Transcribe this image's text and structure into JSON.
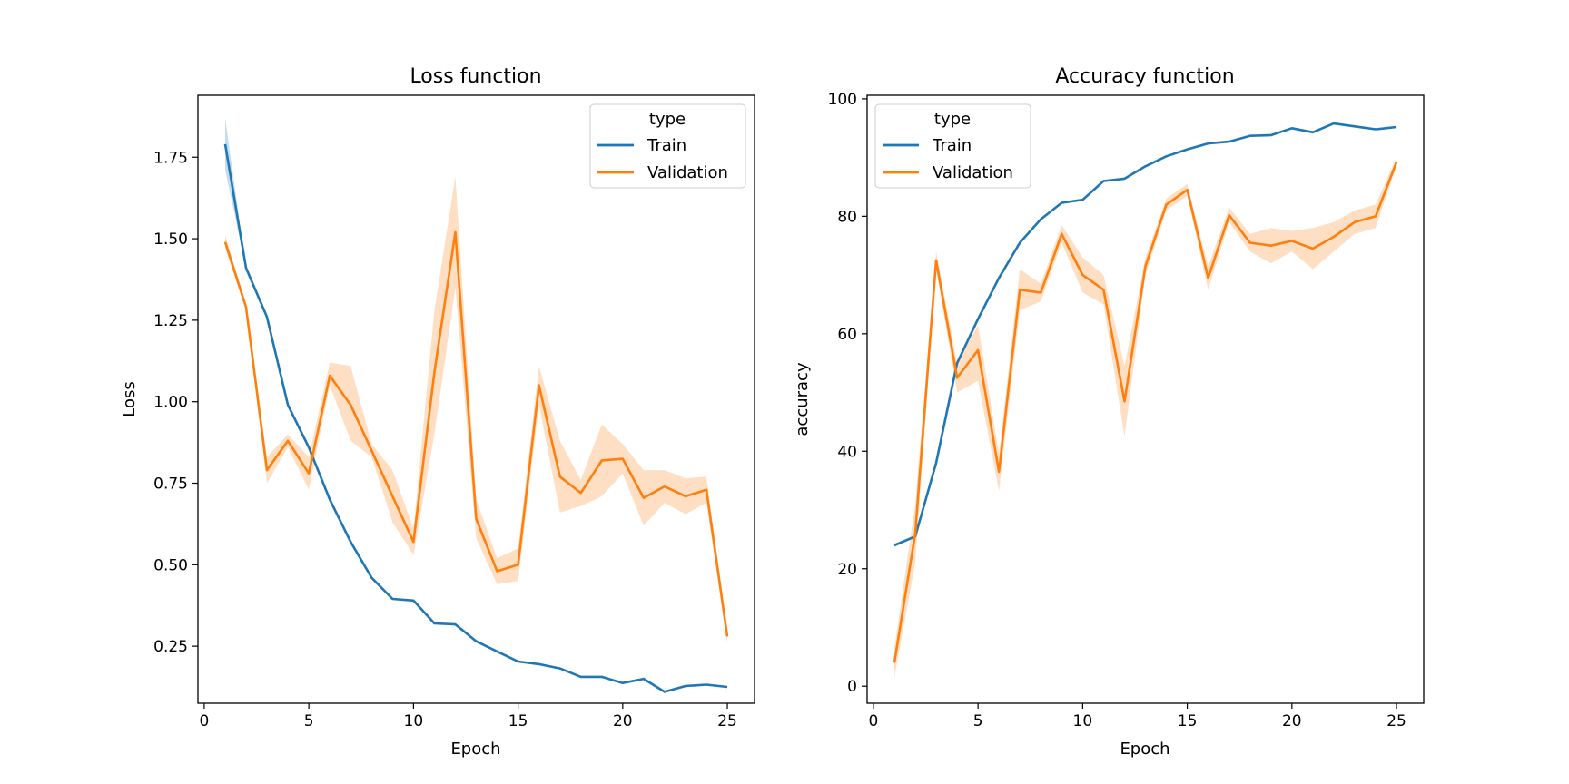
{
  "chart_data": [
    {
      "type": "line",
      "title": "Loss function",
      "xlabel": "Epoch",
      "ylabel": "Loss",
      "xlim": [
        -0.3,
        26.3
      ],
      "ylim": [
        0.075,
        1.94
      ],
      "xticks": [
        "0",
        "5",
        "10",
        "15",
        "20",
        "25"
      ],
      "yticks": [
        "0.25",
        "0.50",
        "0.75",
        "1.00",
        "1.25",
        "1.50",
        "1.75"
      ],
      "grid": false,
      "legend": {
        "title": "type",
        "position": "upper right",
        "entries": [
          "Train",
          "Validation"
        ]
      },
      "x": [
        1,
        2,
        3,
        4,
        5,
        6,
        7,
        8,
        9,
        10,
        11,
        12,
        13,
        14,
        15,
        16,
        17,
        18,
        19,
        20,
        21,
        22,
        23,
        24,
        25
      ],
      "series": [
        {
          "name": "Train",
          "color": "#1f77b4",
          "values": [
            1.79,
            1.41,
            1.26,
            0.99,
            0.86,
            0.7,
            0.57,
            0.46,
            0.395,
            0.39,
            0.32,
            0.317,
            0.265,
            0.234,
            0.203,
            0.195,
            0.182,
            0.156,
            0.156,
            0.137,
            0.15,
            0.11,
            0.128,
            0.132,
            0.125
          ],
          "lower": [
            1.71,
            1.41,
            1.26,
            0.99,
            0.86,
            0.7,
            0.57,
            0.46,
            0.395,
            0.39,
            0.32,
            0.317,
            0.265,
            0.234,
            0.203,
            0.195,
            0.182,
            0.156,
            0.156,
            0.137,
            0.15,
            0.11,
            0.128,
            0.132,
            0.125
          ],
          "upper": [
            1.87,
            1.41,
            1.26,
            0.99,
            0.86,
            0.7,
            0.57,
            0.46,
            0.395,
            0.39,
            0.32,
            0.317,
            0.265,
            0.234,
            0.203,
            0.195,
            0.182,
            0.156,
            0.156,
            0.137,
            0.15,
            0.11,
            0.128,
            0.132,
            0.125
          ]
        },
        {
          "name": "Validation",
          "color": "#ff7f0e",
          "values": [
            1.49,
            1.29,
            0.79,
            0.88,
            0.78,
            1.08,
            0.99,
            0.85,
            0.71,
            0.57,
            1.09,
            1.52,
            0.64,
            0.48,
            0.5,
            1.05,
            0.77,
            0.72,
            0.82,
            0.825,
            0.705,
            0.74,
            0.71,
            0.73,
            0.28
          ],
          "lower": [
            1.47,
            1.28,
            0.75,
            0.86,
            0.73,
            1.05,
            0.88,
            0.83,
            0.63,
            0.53,
            0.9,
            1.35,
            0.58,
            0.44,
            0.45,
            0.99,
            0.66,
            0.68,
            0.71,
            0.78,
            0.62,
            0.69,
            0.655,
            0.69,
            0.26
          ],
          "upper": [
            1.51,
            1.3,
            0.83,
            0.9,
            0.83,
            1.12,
            1.11,
            0.87,
            0.79,
            0.61,
            1.28,
            1.69,
            0.7,
            0.52,
            0.55,
            1.11,
            0.88,
            0.76,
            0.93,
            0.87,
            0.79,
            0.79,
            0.765,
            0.77,
            0.3
          ]
        }
      ]
    },
    {
      "type": "line",
      "title": "Accuracy function",
      "xlabel": "Epoch",
      "ylabel": "accuracy",
      "xlim": [
        -0.3,
        26.3
      ],
      "ylim": [
        -2.9,
        100.6
      ],
      "xticks": [
        "0",
        "5",
        "10",
        "15",
        "20",
        "25"
      ],
      "yticks": [
        "0",
        "20",
        "40",
        "60",
        "80",
        "100"
      ],
      "grid": false,
      "legend": {
        "title": "type",
        "position": "upper left",
        "entries": [
          "Train",
          "Validation"
        ]
      },
      "x": [
        1,
        2,
        3,
        4,
        5,
        6,
        7,
        8,
        9,
        10,
        11,
        12,
        13,
        14,
        15,
        16,
        17,
        18,
        19,
        20,
        21,
        22,
        23,
        24,
        25
      ],
      "series": [
        {
          "name": "Train",
          "color": "#1f77b4",
          "values": [
            24,
            25.5,
            38,
            55,
            62.5,
            69.5,
            75.5,
            79.5,
            82.3,
            82.8,
            86,
            86.4,
            88.5,
            90.2,
            91.4,
            92.4,
            92.7,
            93.7,
            93.8,
            95,
            94.3,
            95.8,
            95.3,
            94.8,
            95.2
          ],
          "lower": [
            23.7,
            25.3,
            38,
            55,
            62.5,
            69.5,
            75.5,
            79.5,
            82.3,
            82.8,
            86,
            86.4,
            88.5,
            90.2,
            91.4,
            92.4,
            92.7,
            93.7,
            93.8,
            95,
            94.3,
            95.8,
            95.3,
            94.8,
            95.2
          ],
          "upper": [
            24.3,
            25.7,
            38,
            55,
            62.5,
            69.5,
            75.5,
            79.5,
            82.3,
            82.8,
            86,
            86.4,
            88.5,
            90.2,
            91.4,
            92.4,
            92.7,
            93.7,
            93.8,
            95,
            94.3,
            95.8,
            95.3,
            94.8,
            95.2
          ]
        },
        {
          "name": "Validation",
          "color": "#ff7f0e",
          "values": [
            4,
            26,
            72.5,
            52.5,
            57.2,
            36.5,
            67.5,
            67,
            77,
            70,
            67.5,
            48.5,
            71.5,
            82,
            84.5,
            69.5,
            80.2,
            75.5,
            75,
            75.8,
            74.5,
            76.5,
            79,
            80,
            89.2
          ],
          "lower": [
            1.5,
            21,
            71,
            50,
            52,
            33.2,
            64,
            65.5,
            75.5,
            67,
            65,
            42.5,
            70,
            81,
            83.5,
            67.5,
            79,
            74,
            72,
            74,
            71,
            74,
            77,
            78,
            88.5
          ],
          "upper": [
            6.5,
            31,
            74,
            55,
            61.5,
            39.5,
            71,
            68.5,
            78.5,
            73,
            70,
            54.5,
            73,
            83,
            85.5,
            71.5,
            81.5,
            77,
            78,
            77.5,
            78,
            79,
            81,
            82,
            90
          ]
        }
      ]
    }
  ]
}
